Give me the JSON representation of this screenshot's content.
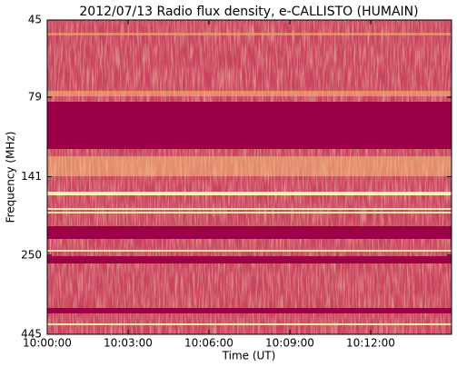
{
  "chart_data": {
    "type": "spectrogram",
    "title": "2012/07/13  Radio flux density, e-CALLISTO (HUMAIN)",
    "x_label": "Time (UT)",
    "y_label": "Frequency (MHz)",
    "xlim": [
      "10:00:00",
      "10:15:00"
    ],
    "xticks": [
      "10:00:00",
      "10:03:00",
      "10:06:00",
      "10:09:00",
      "10:12:00"
    ],
    "ylim": [
      445,
      45
    ],
    "yticks": [
      45,
      79,
      141,
      250,
      445
    ],
    "log_y": true
  }
}
